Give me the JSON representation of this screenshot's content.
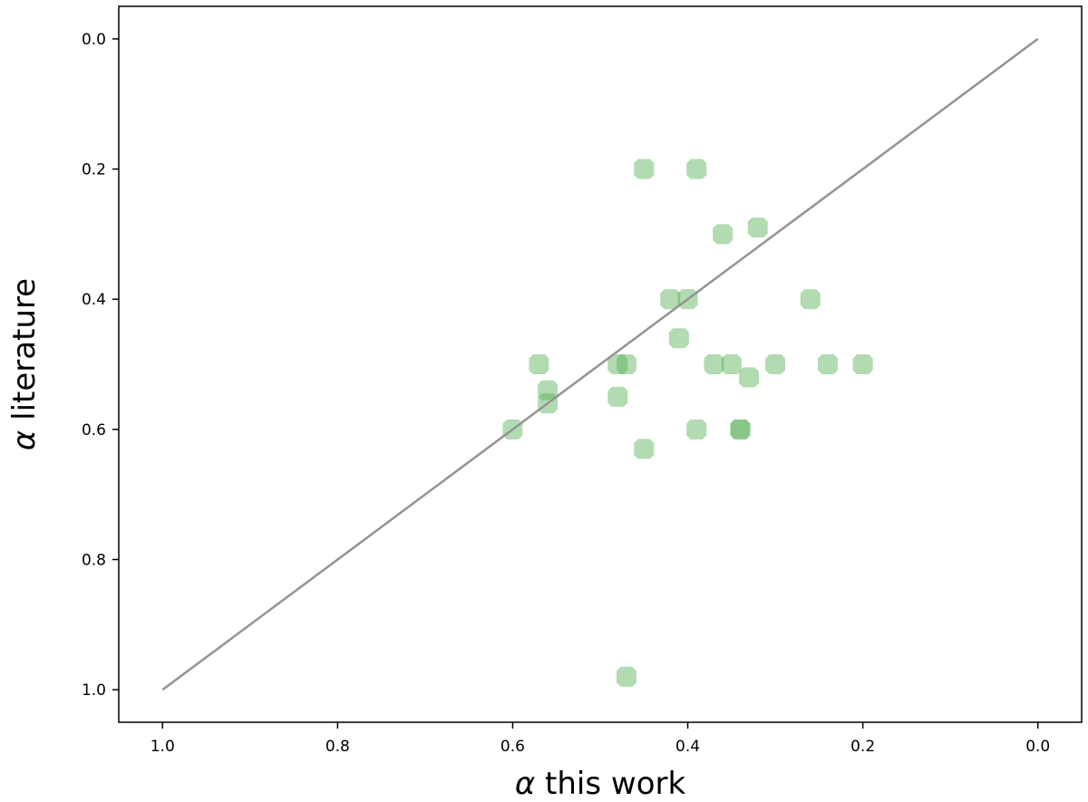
{
  "chart_data": {
    "type": "scatter",
    "xlabel_symbol": "α",
    "xlabel_text": " this work",
    "ylabel_symbol": "α",
    "ylabel_text": " literature",
    "xlim": [
      1.05,
      -0.05
    ],
    "ylim": [
      1.05,
      -0.05
    ],
    "x_inverted": true,
    "y_inverted": true,
    "xticks": [
      1.0,
      0.8,
      0.6,
      0.4,
      0.2,
      0.0
    ],
    "xtick_labels": [
      "1.0",
      "0.8",
      "0.6",
      "0.4",
      "0.2",
      "0.0"
    ],
    "yticks": [
      0.0,
      0.2,
      0.4,
      0.6,
      0.8,
      1.0
    ],
    "ytick_labels": [
      "0.0",
      "0.2",
      "0.4",
      "0.6",
      "0.8",
      "1.0"
    ],
    "grid": false,
    "reference_line": {
      "x": [
        1.0,
        0.0
      ],
      "y": [
        1.0,
        0.0
      ],
      "color": "#939393"
    },
    "marker_color": "#55b055",
    "marker_opacity": 0.45,
    "series": [
      {
        "points": [
          {
            "x": 0.45,
            "y": 0.2
          },
          {
            "x": 0.39,
            "y": 0.2
          },
          {
            "x": 0.36,
            "y": 0.3
          },
          {
            "x": 0.32,
            "y": 0.29
          },
          {
            "x": 0.42,
            "y": 0.4
          },
          {
            "x": 0.4,
            "y": 0.4
          },
          {
            "x": 0.26,
            "y": 0.4
          },
          {
            "x": 0.41,
            "y": 0.46
          },
          {
            "x": 0.57,
            "y": 0.5
          },
          {
            "x": 0.48,
            "y": 0.5
          },
          {
            "x": 0.47,
            "y": 0.5
          },
          {
            "x": 0.37,
            "y": 0.5
          },
          {
            "x": 0.35,
            "y": 0.5
          },
          {
            "x": 0.3,
            "y": 0.5
          },
          {
            "x": 0.24,
            "y": 0.5
          },
          {
            "x": 0.2,
            "y": 0.5
          },
          {
            "x": 0.33,
            "y": 0.52
          },
          {
            "x": 0.56,
            "y": 0.54
          },
          {
            "x": 0.56,
            "y": 0.56
          },
          {
            "x": 0.48,
            "y": 0.55
          },
          {
            "x": 0.6,
            "y": 0.6
          },
          {
            "x": 0.39,
            "y": 0.6
          },
          {
            "x": 0.34,
            "y": 0.6
          },
          {
            "x": 0.34,
            "y": 0.6
          },
          {
            "x": 0.45,
            "y": 0.63
          },
          {
            "x": 0.47,
            "y": 0.98
          }
        ]
      }
    ]
  }
}
